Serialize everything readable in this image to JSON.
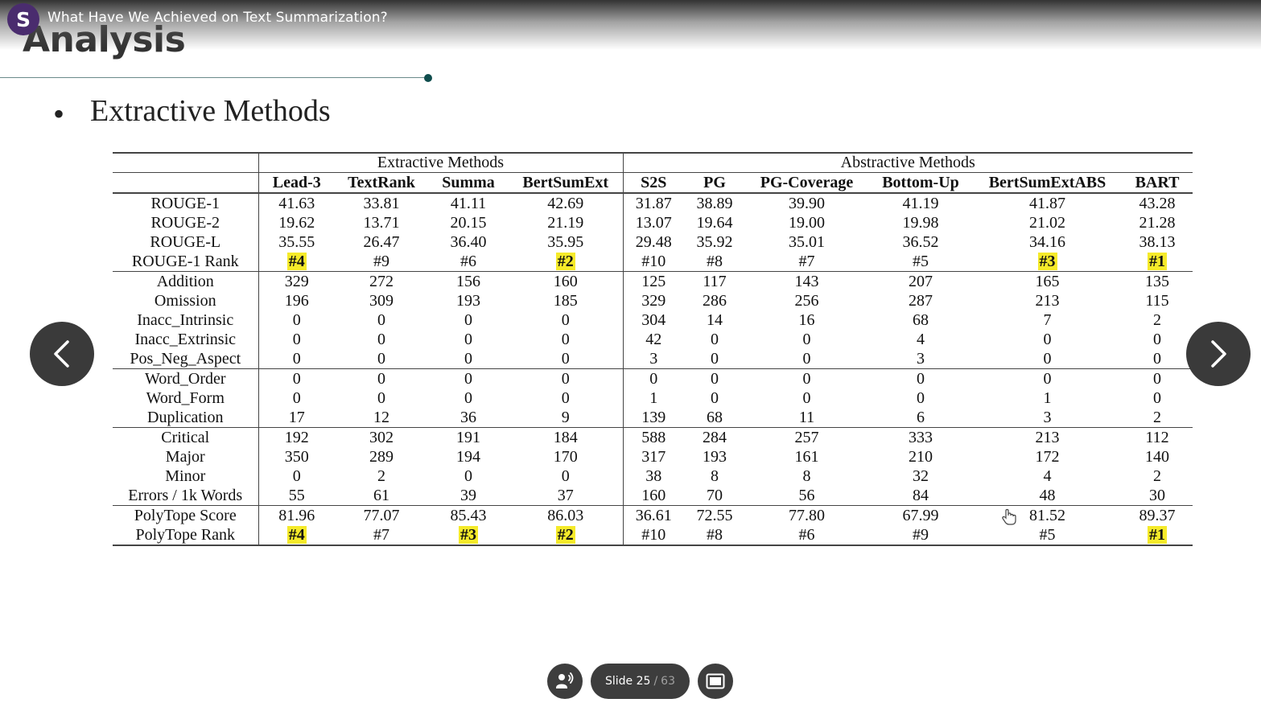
{
  "header": {
    "logo_letter": "S",
    "title": "What Have We Achieved on Text Summarization?"
  },
  "slide": {
    "heading": "Analysis",
    "bullet": "Extractive Methods"
  },
  "table": {
    "groups": [
      "Extractive Methods",
      "Abstractive Methods"
    ],
    "columns": [
      "Lead-3",
      "TextRank",
      "Summa",
      "BertSumExt",
      "S2S",
      "PG",
      "PG-Coverage",
      "Bottom-Up",
      "BertSumExtABS",
      "BART"
    ],
    "rows": [
      {
        "label": "ROUGE-1",
        "values": [
          "41.63",
          "33.81",
          "41.11",
          "42.69",
          "31.87",
          "38.89",
          "39.90",
          "41.19",
          "41.87",
          "43.28"
        ]
      },
      {
        "label": "ROUGE-2",
        "values": [
          "19.62",
          "13.71",
          "20.15",
          "21.19",
          "13.07",
          "19.64",
          "19.00",
          "19.98",
          "21.02",
          "21.28"
        ]
      },
      {
        "label": "ROUGE-L",
        "values": [
          "35.55",
          "26.47",
          "36.40",
          "35.95",
          "29.48",
          "35.92",
          "35.01",
          "36.52",
          "34.16",
          "38.13"
        ]
      },
      {
        "label": "ROUGE-1 Rank",
        "values": [
          "#4",
          "#9",
          "#6",
          "#2",
          "#10",
          "#8",
          "#7",
          "#5",
          "#3",
          "#1"
        ],
        "highlight": [
          0,
          3,
          8,
          9
        ]
      },
      {
        "label": "Addition",
        "values": [
          "329",
          "272",
          "156",
          "160",
          "125",
          "117",
          "143",
          "207",
          "165",
          "135"
        ],
        "sep": true
      },
      {
        "label": "Omission",
        "values": [
          "196",
          "309",
          "193",
          "185",
          "329",
          "286",
          "256",
          "287",
          "213",
          "115"
        ]
      },
      {
        "label": "Inacc_Intrinsic",
        "values": [
          "0",
          "0",
          "0",
          "0",
          "304",
          "14",
          "16",
          "68",
          "7",
          "2"
        ]
      },
      {
        "label": "Inacc_Extrinsic",
        "values": [
          "0",
          "0",
          "0",
          "0",
          "42",
          "0",
          "0",
          "4",
          "0",
          "0"
        ]
      },
      {
        "label": "Pos_Neg_Aspect",
        "values": [
          "0",
          "0",
          "0",
          "0",
          "3",
          "0",
          "0",
          "3",
          "0",
          "0"
        ]
      },
      {
        "label": "Word_Order",
        "values": [
          "0",
          "0",
          "0",
          "0",
          "0",
          "0",
          "0",
          "0",
          "0",
          "0"
        ],
        "sep": true
      },
      {
        "label": "Word_Form",
        "values": [
          "0",
          "0",
          "0",
          "0",
          "1",
          "0",
          "0",
          "0",
          "1",
          "0"
        ]
      },
      {
        "label": "Duplication",
        "values": [
          "17",
          "12",
          "36",
          "9",
          "139",
          "68",
          "11",
          "6",
          "3",
          "2"
        ]
      },
      {
        "label": "Critical",
        "values": [
          "192",
          "302",
          "191",
          "184",
          "588",
          "284",
          "257",
          "333",
          "213",
          "112"
        ],
        "sep": true
      },
      {
        "label": "Major",
        "values": [
          "350",
          "289",
          "194",
          "170",
          "317",
          "193",
          "161",
          "210",
          "172",
          "140"
        ]
      },
      {
        "label": "Minor",
        "values": [
          "0",
          "2",
          "0",
          "0",
          "38",
          "8",
          "8",
          "32",
          "4",
          "2"
        ]
      },
      {
        "label": "Errors / 1k Words",
        "values": [
          "55",
          "61",
          "39",
          "37",
          "160",
          "70",
          "56",
          "84",
          "48",
          "30"
        ]
      },
      {
        "label": "PolyTope Score",
        "values": [
          "81.96",
          "77.07",
          "85.43",
          "86.03",
          "36.61",
          "72.55",
          "77.80",
          "67.99",
          "81.52",
          "89.37"
        ],
        "sep": true
      },
      {
        "label": "PolyTope Rank",
        "values": [
          "#4",
          "#7",
          "#3",
          "#2",
          "#10",
          "#8",
          "#6",
          "#9",
          "#5",
          "#1"
        ],
        "highlight": [
          0,
          2,
          3,
          9
        ],
        "last": true
      }
    ]
  },
  "controls": {
    "prev_icon": "chevron-left-icon",
    "next_icon": "chevron-right-icon",
    "narration_icon": "speaker-person-icon",
    "fullscreen_icon": "screen-icon",
    "slide_label": "Slide 25",
    "slide_sep": "/",
    "slide_total": "63"
  },
  "colors": {
    "highlight": "#f5ea2a",
    "logo": "#4a2c6e",
    "controls": "#3d3d3d"
  }
}
